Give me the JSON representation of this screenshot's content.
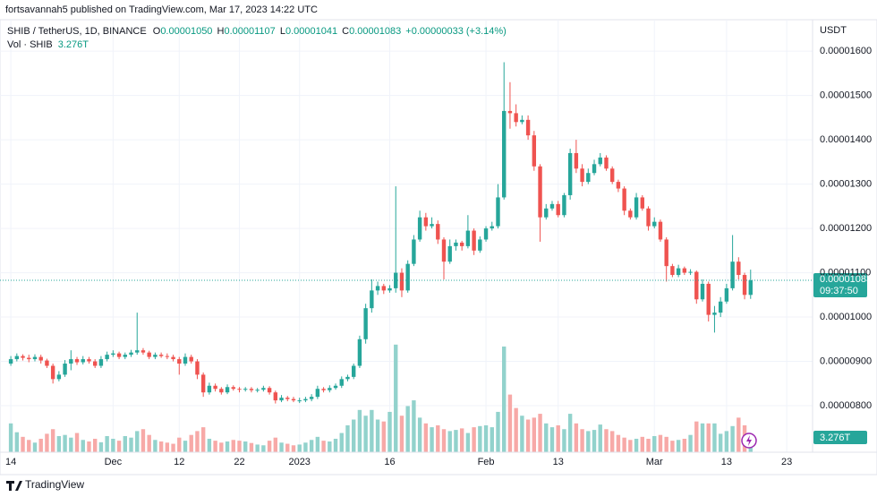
{
  "header": {
    "publisher": "fortsavannah5 published on TradingView.com, Mar 17, 2023 14:22 UTC"
  },
  "chart_data": {
    "type": "candlestick",
    "symbol": "SHIB / TetherUS, 1D, BINANCE",
    "legend": {
      "o_key": "O",
      "open": "0.00001050",
      "h_key": "H",
      "high": "0.00001107",
      "l_key": "L",
      "low": "0.00001041",
      "c_key": "C",
      "close": "0.00001083",
      "change": "+0.00000033 (+3.14%)"
    },
    "volume_title": "Vol · SHIB",
    "volume_label": "3.276T",
    "currency": "USDT",
    "last_price_label": "0.00001083",
    "countdown": "09:37:50",
    "open": [
      8.95e-06,
      9.05e-06,
      9.12e-06,
      9.08e-06,
      9.05e-06,
      9.1e-06,
      9.02e-06,
      8.9e-06,
      8.6e-06,
      8.7e-06,
      8.95e-06,
      9.05e-06,
      8.98e-06,
      9.05e-06,
      9e-06,
      8.9e-06,
      9.05e-06,
      9.15e-06,
      9.18e-06,
      9.1e-06,
      9.15e-06,
      9.2e-06,
      9.25e-06,
      9.2e-06,
      9.1e-06,
      9.15e-06,
      9.12e-06,
      9.1e-06,
      9.05e-06,
      8.95e-06,
      9.1e-06,
      9e-06,
      8.7e-06,
      8.3e-06,
      8.45e-06,
      8.38e-06,
      8.3e-06,
      8.42e-06,
      8.38e-06,
      8.36e-06,
      8.38e-06,
      8.35e-06,
      8.36e-06,
      8.4e-06,
      8.3e-06,
      8.12e-06,
      8.18e-06,
      8.15e-06,
      8.12e-06,
      8.12e-06,
      8.15e-06,
      8.2e-06,
      8.38e-06,
      8.35e-06,
      8.4e-06,
      8.45e-06,
      8.6e-06,
      8.65e-06,
      8.9e-06,
      9.5e-06,
      1.02e-05,
      1.06e-05,
      1.07e-05,
      1.06e-05,
      1.065e-05,
      1.1e-05,
      1.06e-05,
      1.12e-05,
      1.175e-05,
      1.225e-05,
      1.205e-05,
      1.21e-05,
      1.175e-05,
      1.125e-05,
      1.16e-05,
      1.168e-05,
      1.16e-05,
      1.195e-05,
      1.15e-05,
      1.175e-05,
      1.2e-05,
      1.205e-05,
      1.27e-05,
      1.465e-05,
      1.46e-05,
      1.44e-05,
      1.445e-05,
      1.41e-05,
      1.34e-05,
      1.225e-05,
      1.245e-05,
      1.255e-05,
      1.23e-05,
      1.275e-05,
      1.37e-05,
      1.335e-05,
      1.305e-05,
      1.325e-05,
      1.345e-05,
      1.36e-05,
      1.335e-05,
      1.305e-05,
      1.29e-05,
      1.24e-05,
      1.225e-05,
      1.27e-05,
      1.245e-05,
      1.205e-05,
      1.215e-05,
      1.175e-05,
      1.115e-05,
      1.095e-05,
      1.11e-05,
      1.1e-05,
      1.102e-05,
      1.04e-05,
      1.075e-05,
      1.005e-05,
      1.01e-05,
      1.035e-05,
      1.065e-05,
      1.125e-05,
      1.095e-05,
      1.05e-05
    ],
    "high": [
      9.12e-06,
      9.18e-06,
      9.16e-06,
      9.15e-06,
      9.16e-06,
      9.15e-06,
      9.06e-06,
      8.95e-06,
      8.78e-06,
      9.03e-06,
      9.25e-06,
      9.1e-06,
      9.12e-06,
      9.1e-06,
      9.05e-06,
      9.12e-06,
      9.22e-06,
      9.25e-06,
      9.22e-06,
      9.2e-06,
      9.26e-06,
      1.01e-05,
      9.3e-06,
      9.24e-06,
      9.2e-06,
      9.2e-06,
      9.18e-06,
      9.15e-06,
      9.1e-06,
      9.18e-06,
      9.15e-06,
      9.05e-06,
      8.75e-06,
      8.52e-06,
      8.5e-06,
      8.42e-06,
      8.48e-06,
      8.46e-06,
      8.42e-06,
      8.42e-06,
      8.42e-06,
      8.4e-06,
      8.45e-06,
      8.44e-06,
      8.34e-06,
      8.24e-06,
      8.22e-06,
      8.2e-06,
      8.18e-06,
      8.2e-06,
      8.26e-06,
      8.45e-06,
      8.42e-06,
      8.46e-06,
      8.5e-06,
      8.66e-06,
      8.7e-06,
      8.95e-06,
      9.58e-06,
      1.03e-05,
      1.085e-05,
      1.08e-05,
      1.075e-05,
      1.072e-05,
      1.295e-05,
      1.11e-05,
      1.128e-05,
      1.185e-05,
      1.24e-05,
      1.235e-05,
      1.225e-05,
      1.218e-05,
      1.18e-05,
      1.175e-05,
      1.175e-05,
      1.172e-05,
      1.23e-05,
      1.2e-05,
      1.182e-05,
      1.205e-05,
      1.215e-05,
      1.3e-05,
      1.575e-05,
      1.53e-05,
      1.48e-05,
      1.455e-05,
      1.455e-05,
      1.42e-05,
      1.345e-05,
      1.255e-05,
      1.262e-05,
      1.262e-05,
      1.28e-05,
      1.38e-05,
      1.4e-05,
      1.345e-05,
      1.335e-05,
      1.355e-05,
      1.37e-05,
      1.365e-05,
      1.34e-05,
      1.31e-05,
      1.295e-05,
      1.245e-05,
      1.28e-05,
      1.275e-05,
      1.25e-05,
      1.225e-05,
      1.22e-05,
      1.18e-05,
      1.12e-05,
      1.118e-05,
      1.114e-05,
      1.108e-05,
      1.105e-05,
      1.085e-05,
      1.08e-05,
      1.025e-05,
      1.045e-05,
      1.075e-05,
      1.185e-05,
      1.135e-05,
      1.1e-05,
      1.107e-05
    ],
    "low": [
      8.9e-06,
      9e-06,
      9.02e-06,
      8.98e-06,
      9e-06,
      8.95e-06,
      8.85e-06,
      8.5e-06,
      8.55e-06,
      8.65e-06,
      8.8e-06,
      8.92e-06,
      8.93e-06,
      8.95e-06,
      8.85e-06,
      8.85e-06,
      9e-06,
      9.1e-06,
      9.05e-06,
      9.05e-06,
      9.1e-06,
      9.15e-06,
      9.15e-06,
      9.05e-06,
      9.05e-06,
      9.08e-06,
      9.05e-06,
      9e-06,
      8.7e-06,
      8.9e-06,
      8.95e-06,
      8.6e-06,
      8.2e-06,
      8.25e-06,
      8.32e-06,
      8.25e-06,
      8.26e-06,
      8.34e-06,
      8.3e-06,
      8.32e-06,
      8.3e-06,
      8.3e-06,
      8.32e-06,
      8.25e-06,
      8.05e-06,
      8.08e-06,
      8.1e-06,
      8.08e-06,
      8.06e-06,
      8.08e-06,
      8.1e-06,
      8.15e-06,
      8.3e-06,
      8.3e-06,
      8.36e-06,
      8.4e-06,
      8.55e-06,
      8.6e-06,
      8.85e-06,
      9.4e-06,
      1.01e-05,
      1.05e-05,
      1.052e-05,
      1.055e-05,
      1.055e-05,
      1.045e-05,
      1.055e-05,
      1.115e-05,
      1.17e-05,
      1.195e-05,
      1.2e-05,
      1.165e-05,
      1.085e-05,
      1.12e-05,
      1.15e-05,
      1.15e-05,
      1.155e-05,
      1.14e-05,
      1.145e-05,
      1.17e-05,
      1.195e-05,
      1.2e-05,
      1.265e-05,
      1.425e-05,
      1.43e-05,
      1.435e-05,
      1.4e-05,
      1.33e-05,
      1.17e-05,
      1.22e-05,
      1.24e-05,
      1.225e-05,
      1.225e-05,
      1.265e-05,
      1.325e-05,
      1.295e-05,
      1.3e-05,
      1.32e-05,
      1.34e-05,
      1.33e-05,
      1.3e-05,
      1.282e-05,
      1.23e-05,
      1.22e-05,
      1.22e-05,
      1.24e-05,
      1.195e-05,
      1.2e-05,
      1.17e-05,
      1.08e-05,
      1.09e-05,
      1.09e-05,
      1.095e-05,
      1.095e-05,
      1.03e-05,
      1.035e-05,
      9.9e-06,
      9.65e-06,
      1e-05,
      1.03e-05,
      1.06e-05,
      1.085e-05,
      1.04e-05,
      1.041e-05
    ],
    "close": [
      9.05e-06,
      9.12e-06,
      9.08e-06,
      9.05e-06,
      9.1e-06,
      9.02e-06,
      8.9e-06,
      8.6e-06,
      8.7e-06,
      8.95e-06,
      9.05e-06,
      8.98e-06,
      9.05e-06,
      9e-06,
      8.9e-06,
      9.05e-06,
      9.15e-06,
      9.18e-06,
      9.1e-06,
      9.15e-06,
      9.2e-06,
      9.25e-06,
      9.2e-06,
      9.1e-06,
      9.15e-06,
      9.12e-06,
      9.1e-06,
      9.05e-06,
      8.95e-06,
      9.1e-06,
      9e-06,
      8.7e-06,
      8.3e-06,
      8.45e-06,
      8.38e-06,
      8.3e-06,
      8.42e-06,
      8.38e-06,
      8.36e-06,
      8.38e-06,
      8.35e-06,
      8.36e-06,
      8.4e-06,
      8.3e-06,
      8.12e-06,
      8.18e-06,
      8.15e-06,
      8.12e-06,
      8.12e-06,
      8.15e-06,
      8.2e-06,
      8.38e-06,
      8.35e-06,
      8.4e-06,
      8.45e-06,
      8.6e-06,
      8.65e-06,
      8.9e-06,
      9.5e-06,
      1.02e-05,
      1.06e-05,
      1.07e-05,
      1.06e-05,
      1.065e-05,
      1.1e-05,
      1.06e-05,
      1.12e-05,
      1.175e-05,
      1.225e-05,
      1.205e-05,
      1.21e-05,
      1.175e-05,
      1.125e-05,
      1.16e-05,
      1.168e-05,
      1.16e-05,
      1.195e-05,
      1.15e-05,
      1.175e-05,
      1.2e-05,
      1.205e-05,
      1.27e-05,
      1.465e-05,
      1.46e-05,
      1.44e-05,
      1.445e-05,
      1.41e-05,
      1.34e-05,
      1.225e-05,
      1.245e-05,
      1.255e-05,
      1.23e-05,
      1.275e-05,
      1.37e-05,
      1.335e-05,
      1.305e-05,
      1.325e-05,
      1.345e-05,
      1.36e-05,
      1.335e-05,
      1.305e-05,
      1.29e-05,
      1.24e-05,
      1.225e-05,
      1.27e-05,
      1.245e-05,
      1.205e-05,
      1.215e-05,
      1.175e-05,
      1.115e-05,
      1.095e-05,
      1.11e-05,
      1.1e-05,
      1.102e-05,
      1.04e-05,
      1.075e-05,
      1.005e-05,
      1.01e-05,
      1.035e-05,
      1.065e-05,
      1.125e-05,
      1.095e-05,
      1.05e-05,
      1.083e-05
    ],
    "volume": [
      7.5,
      5.2,
      4.0,
      3.2,
      2.5,
      3.5,
      4.8,
      6.0,
      4.2,
      4.5,
      3.8,
      5.0,
      3.2,
      2.8,
      3.5,
      2.6,
      4.2,
      3.5,
      3.0,
      4.2,
      3.8,
      5.5,
      6.0,
      4.5,
      3.2,
      2.8,
      2.5,
      2.2,
      3.8,
      3.0,
      4.5,
      5.5,
      6.5,
      3.5,
      3.0,
      2.5,
      2.8,
      3.2,
      3.0,
      2.8,
      2.4,
      2.0,
      1.8,
      3.0,
      3.8,
      2.5,
      2.2,
      1.8,
      2.0,
      2.5,
      3.2,
      4.0,
      3.0,
      2.8,
      3.5,
      5.0,
      7.0,
      8.5,
      11.0,
      9.5,
      11.0,
      8.5,
      8.0,
      10.5,
      28.0,
      9.5,
      12.0,
      13.5,
      9.0,
      7.5,
      6.5,
      7.0,
      6.0,
      5.5,
      5.8,
      6.2,
      5.0,
      6.5,
      6.8,
      7.0,
      6.5,
      10.5,
      27.5,
      15.0,
      11.5,
      9.5,
      8.5,
      9.0,
      10.0,
      7.5,
      6.5,
      7.0,
      6.0,
      10.0,
      7.5,
      6.0,
      5.5,
      5.8,
      7.2,
      6.0,
      5.5,
      4.5,
      3.8,
      3.2,
      3.5,
      4.0,
      3.5,
      4.2,
      4.5,
      4.0,
      3.0,
      3.2,
      3.5,
      4.5,
      8.0,
      7.5,
      7.5,
      7.5,
      4.8,
      5.5,
      6.8,
      9.0,
      7.0,
      3.276
    ],
    "up_color": "#26a69a",
    "down_color": "#ef5350",
    "volume_up_color": "#92d2cc",
    "volume_down_color": "#f7a9a7",
    "ylim": [
      6.95e-06,
      1.675e-05
    ],
    "yticks": [
      {
        "value": 8e-06,
        "label": "0.00000800"
      },
      {
        "value": 9e-06,
        "label": "0.00000900"
      },
      {
        "value": 1e-05,
        "label": "0.00001000"
      },
      {
        "value": 1.1e-05,
        "label": "0.00001100"
      },
      {
        "value": 1.2e-05,
        "label": "0.00001200"
      },
      {
        "value": 1.3e-05,
        "label": "0.00001300"
      },
      {
        "value": 1.4e-05,
        "label": "0.00001400"
      },
      {
        "value": 1.5e-05,
        "label": "0.00001500"
      },
      {
        "value": 1.6e-05,
        "label": "0.00001600"
      }
    ],
    "y2lim": [
      0,
      113
    ],
    "xlim": [
      -1.8,
      133.3
    ],
    "xticks": [
      {
        "value": 0,
        "label": "14"
      },
      {
        "value": 17,
        "label": "Dec"
      },
      {
        "value": 28,
        "label": "12"
      },
      {
        "value": 38,
        "label": "22"
      },
      {
        "value": 48,
        "label": "2023"
      },
      {
        "value": 63,
        "label": "16"
      },
      {
        "value": 79,
        "label": "Feb"
      },
      {
        "value": 91,
        "label": "13"
      },
      {
        "value": 107,
        "label": "Mar"
      },
      {
        "value": 119,
        "label": "13"
      },
      {
        "value": 129,
        "label": "23"
      }
    ],
    "grid": true
  },
  "footer": {
    "brand": "TradingView"
  }
}
